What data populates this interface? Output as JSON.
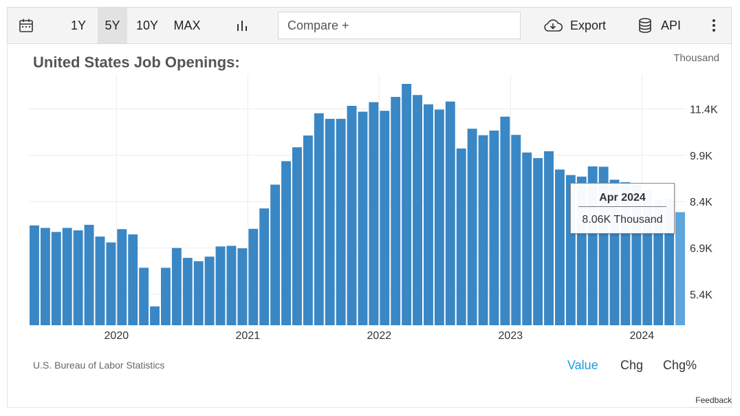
{
  "toolbar": {
    "calendar_icon": "calendar-icon",
    "range_1y": "1Y",
    "range_5y": "5Y",
    "range_10y": "10Y",
    "range_max": "MAX",
    "chart_type_icon": "bar-chart-icon",
    "compare_placeholder": "Compare +",
    "export_label": "Export",
    "export_icon": "cloud-download-icon",
    "api_label": "API",
    "api_icon": "database-icon",
    "more_icon": "more-vertical-icon",
    "selected_range": "5Y"
  },
  "header": {
    "title": "United States Job Openings:",
    "units": "Thousand"
  },
  "footer": {
    "source": "U.S. Bureau of Labor Statistics",
    "view_value": "Value",
    "view_chg": "Chg",
    "view_chgpct": "Chg%",
    "feedback": "Feedback"
  },
  "tooltip": {
    "date": "Apr 2024",
    "value": "8.06K Thousand"
  },
  "colors": {
    "bar": "#3a87c5",
    "bar_highlight": "#5ea5dc",
    "active_view": "#1a9ce0"
  },
  "chart_data": {
    "type": "bar",
    "title": "United States Job Openings:",
    "ylabel": "Thousand",
    "ylim": [
      4400,
      12500
    ],
    "yticks": [
      5400,
      6900,
      8400,
      9900,
      11400
    ],
    "ytick_labels": [
      "5.4K",
      "6.9K",
      "8.4K",
      "9.9K",
      "11.4K"
    ],
    "xtick_labels": [
      "2020",
      "2021",
      "2022",
      "2023",
      "2024"
    ],
    "grid": true,
    "highlighted_index": 59,
    "categories": [
      "2019-05",
      "2019-06",
      "2019-07",
      "2019-08",
      "2019-09",
      "2019-10",
      "2019-11",
      "2019-12",
      "2020-01",
      "2020-02",
      "2020-03",
      "2020-04",
      "2020-05",
      "2020-06",
      "2020-07",
      "2020-08",
      "2020-09",
      "2020-10",
      "2020-11",
      "2020-12",
      "2021-01",
      "2021-02",
      "2021-03",
      "2021-04",
      "2021-05",
      "2021-06",
      "2021-07",
      "2021-08",
      "2021-09",
      "2021-10",
      "2021-11",
      "2021-12",
      "2022-01",
      "2022-02",
      "2022-03",
      "2022-04",
      "2022-05",
      "2022-06",
      "2022-07",
      "2022-08",
      "2022-09",
      "2022-10",
      "2022-11",
      "2022-12",
      "2023-01",
      "2023-02",
      "2023-03",
      "2023-04",
      "2023-05",
      "2023-06",
      "2023-07",
      "2023-08",
      "2023-09",
      "2023-10",
      "2023-11",
      "2023-12",
      "2024-01",
      "2024-02",
      "2024-03",
      "2024-04"
    ],
    "values": [
      7630,
      7550,
      7420,
      7550,
      7470,
      7650,
      7270,
      7080,
      7510,
      7340,
      6260,
      5010,
      6260,
      6900,
      6580,
      6470,
      6620,
      6950,
      6970,
      6890,
      7520,
      8180,
      8950,
      9710,
      10160,
      10540,
      11260,
      11080,
      11080,
      11500,
      11310,
      11620,
      11340,
      11790,
      12210,
      11850,
      11550,
      11380,
      11640,
      10120,
      10760,
      10550,
      10700,
      11150,
      10560,
      9990,
      9810,
      10030,
      9440,
      9260,
      9210,
      9540,
      9530,
      9110,
      9030,
      8950,
      8760,
      8440,
      8490,
      8060
    ]
  }
}
